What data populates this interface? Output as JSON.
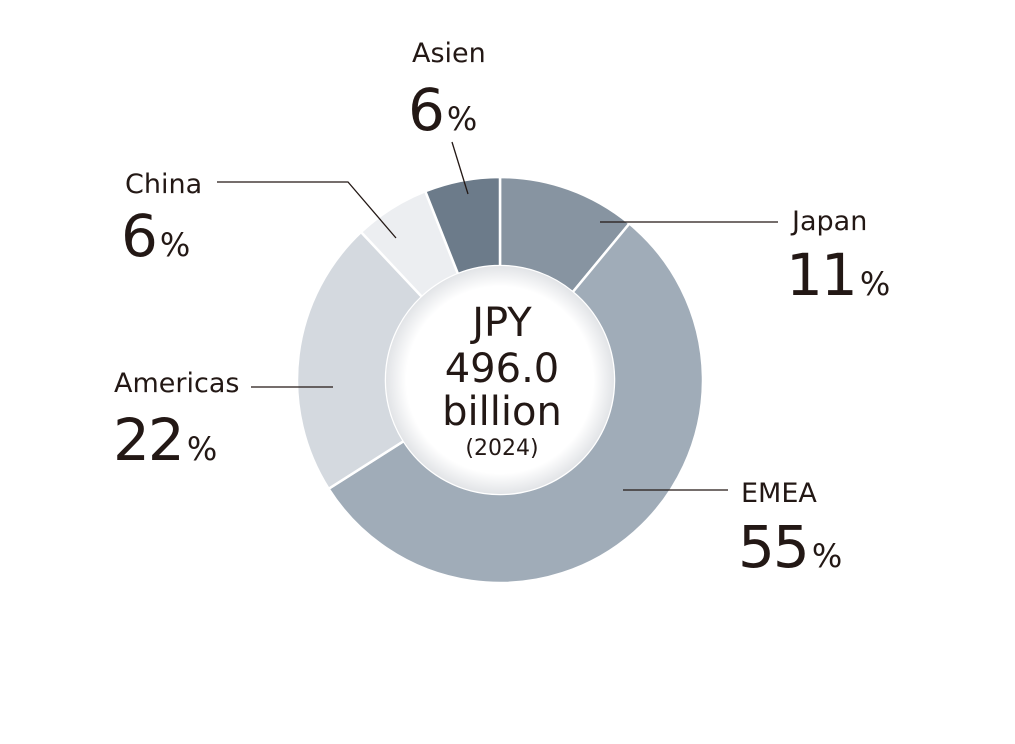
{
  "chart_data": {
    "type": "pie",
    "variant": "donut",
    "categories": [
      "Japan",
      "EMEA",
      "Americas",
      "China",
      "Asien"
    ],
    "values": [
      11,
      55,
      22,
      6,
      6
    ],
    "unit": "%",
    "colors": [
      "#8794a1",
      "#a0acb8",
      "#d4d9df",
      "#eceef1",
      "#6c7b8a"
    ],
    "center_label": {
      "line1": "JPY",
      "line2": "496.0",
      "line3": "billion",
      "line4": "(2024)"
    }
  }
}
